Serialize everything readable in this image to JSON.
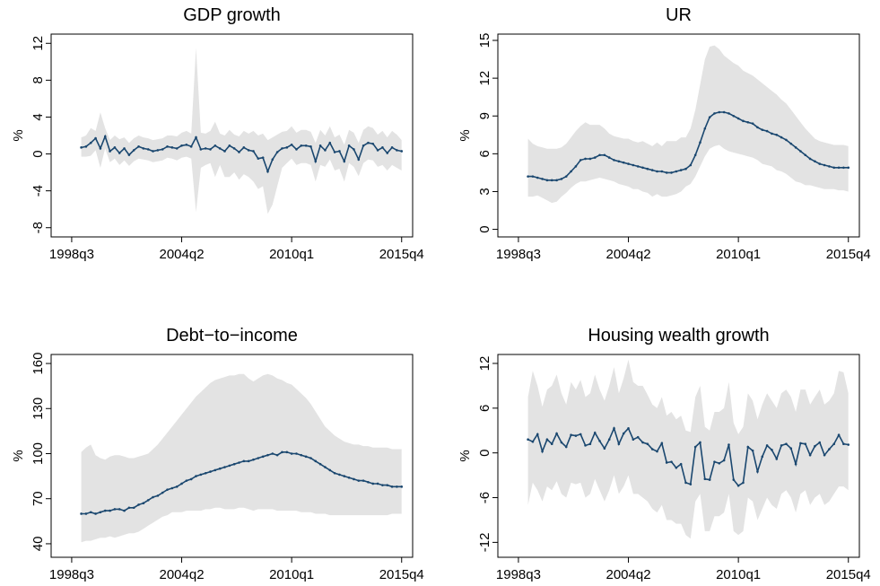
{
  "chart_data": [
    {
      "type": "line",
      "title": "GDP growth",
      "y_label": "%",
      "color": "#1a476f",
      "band_color": "#e3e3e3",
      "xlim": [
        149.7,
        225.3
      ],
      "xticks": [
        {
          "value": 154,
          "label": "1998q3"
        },
        {
          "value": 177,
          "label": "2004q2"
        },
        {
          "value": 200,
          "label": "2010q1"
        },
        {
          "value": 223,
          "label": "2015q4"
        }
      ],
      "ylim": [
        -9,
        13
      ],
      "yticks": [
        -8,
        -4,
        0,
        4,
        8,
        12
      ],
      "x": [
        156,
        157,
        158,
        159,
        160,
        161,
        162,
        163,
        164,
        165,
        166,
        167,
        168,
        169,
        170,
        171,
        172,
        173,
        174,
        175,
        176,
        177,
        178,
        179,
        180,
        181,
        182,
        183,
        184,
        185,
        186,
        187,
        188,
        189,
        190,
        191,
        192,
        193,
        194,
        195,
        196,
        197,
        198,
        199,
        200,
        201,
        202,
        203,
        204,
        205,
        206,
        207,
        208,
        209,
        210,
        211,
        212,
        213,
        214,
        215,
        216,
        217,
        218,
        219,
        220,
        221,
        222,
        223
      ],
      "values": [
        0.7,
        0.8,
        1.2,
        1.7,
        0.6,
        1.9,
        0.3,
        0.7,
        0.1,
        0.6,
        -0.1,
        0.4,
        0.8,
        0.6,
        0.5,
        0.3,
        0.4,
        0.5,
        0.8,
        0.7,
        0.6,
        0.9,
        1.0,
        0.8,
        1.8,
        0.5,
        0.6,
        0.5,
        0.9,
        0.6,
        0.3,
        0.9,
        0.6,
        0.2,
        0.7,
        0.4,
        0.3,
        -0.5,
        -0.4,
        -1.9,
        -0.6,
        0.2,
        0.6,
        0.7,
        1.0,
        0.5,
        0.9,
        0.9,
        0.8,
        -0.8,
        0.9,
        0.4,
        1.2,
        0.2,
        0.3,
        -0.8,
        0.9,
        0.5,
        -0.6,
        0.9,
        1.2,
        1.1,
        0.4,
        0.7,
        0.1,
        0.7,
        0.4,
        0.3
      ],
      "upper": [
        1.8,
        2.0,
        2.8,
        2.5,
        4.5,
        2.8,
        1.5,
        2.0,
        1.6,
        1.8,
        1.2,
        1.7,
        2.0,
        1.8,
        1.7,
        1.5,
        1.6,
        1.7,
        2.0,
        2.0,
        1.9,
        2.3,
        2.5,
        2.2,
        11.5,
        2.3,
        2.2,
        2.5,
        3.5,
        2.2,
        2.0,
        2.6,
        2.1,
        1.9,
        2.5,
        2.2,
        2.5,
        2.0,
        2.2,
        1.5,
        1.8,
        2.1,
        2.4,
        2.5,
        3.0,
        2.3,
        2.6,
        2.6,
        2.4,
        1.2,
        2.6,
        2.0,
        3.0,
        1.8,
        2.1,
        1.0,
        2.6,
        2.3,
        1.2,
        2.6,
        3.0,
        2.8,
        2.1,
        2.5,
        1.8,
        2.5,
        2.1,
        1.5
      ],
      "lower": [
        -0.3,
        -0.3,
        -0.2,
        0.4,
        -1.5,
        0.6,
        -0.9,
        -0.5,
        -1.2,
        -0.7,
        -1.3,
        -0.8,
        -0.5,
        -0.6,
        -0.7,
        -0.9,
        -0.8,
        -0.7,
        -0.4,
        -0.5,
        -0.7,
        -0.4,
        -0.3,
        -0.5,
        -6.3,
        -1.5,
        -1.2,
        -1.0,
        -2.5,
        -1.2,
        -2.5,
        -2.5,
        -2.0,
        -2.8,
        -2.2,
        -2.5,
        -3.0,
        -3.8,
        -3.5,
        -6.5,
        -5.5,
        -3.5,
        -1.5,
        -1.0,
        -0.5,
        -1.2,
        -1.0,
        -1.0,
        -1.2,
        -3.0,
        -1.2,
        -1.4,
        -0.6,
        -1.8,
        -1.6,
        -3.0,
        -1.0,
        -1.4,
        -2.4,
        -1.0,
        -0.6,
        -0.7,
        -1.4,
        -1.2,
        -1.8,
        -1.2,
        -1.5,
        -1.8
      ]
    },
    {
      "type": "line",
      "title": "UR",
      "y_label": "%",
      "color": "#1a476f",
      "band_color": "#e3e3e3",
      "xlim": [
        149.7,
        225.3
      ],
      "xticks": [
        {
          "value": 154,
          "label": "1998q3"
        },
        {
          "value": 177,
          "label": "2004q2"
        },
        {
          "value": 200,
          "label": "2010q1"
        },
        {
          "value": 223,
          "label": "2015q4"
        }
      ],
      "ylim": [
        -0.6,
        15.5
      ],
      "yticks": [
        0,
        3,
        6,
        9,
        12,
        15
      ],
      "x": [
        156,
        157,
        158,
        159,
        160,
        161,
        162,
        163,
        164,
        165,
        166,
        167,
        168,
        169,
        170,
        171,
        172,
        173,
        174,
        175,
        176,
        177,
        178,
        179,
        180,
        181,
        182,
        183,
        184,
        185,
        186,
        187,
        188,
        189,
        190,
        191,
        192,
        193,
        194,
        195,
        196,
        197,
        198,
        199,
        200,
        201,
        202,
        203,
        204,
        205,
        206,
        207,
        208,
        209,
        210,
        211,
        212,
        213,
        214,
        215,
        216,
        217,
        218,
        219,
        220,
        221,
        222,
        223
      ],
      "values": [
        4.2,
        4.2,
        4.1,
        4.0,
        3.9,
        3.9,
        3.9,
        4.0,
        4.2,
        4.6,
        5.0,
        5.5,
        5.6,
        5.6,
        5.7,
        5.9,
        5.9,
        5.7,
        5.5,
        5.4,
        5.3,
        5.2,
        5.1,
        5.0,
        4.9,
        4.8,
        4.7,
        4.6,
        4.6,
        4.5,
        4.5,
        4.6,
        4.7,
        4.8,
        5.1,
        5.9,
        6.9,
        8.0,
        8.9,
        9.2,
        9.3,
        9.3,
        9.2,
        9.0,
        8.8,
        8.6,
        8.5,
        8.4,
        8.1,
        7.9,
        7.8,
        7.6,
        7.5,
        7.3,
        7.1,
        6.8,
        6.5,
        6.2,
        5.9,
        5.6,
        5.4,
        5.2,
        5.1,
        5.0,
        4.9,
        4.9,
        4.9,
        4.9
      ],
      "upper": [
        7.2,
        6.8,
        6.6,
        6.5,
        6.4,
        6.4,
        6.4,
        6.5,
        6.8,
        7.3,
        7.8,
        8.2,
        8.5,
        8.3,
        8.3,
        8.3,
        8.0,
        7.6,
        7.4,
        7.3,
        7.2,
        7.2,
        7.0,
        6.9,
        7.0,
        6.8,
        6.6,
        6.9,
        6.6,
        7.0,
        7.0,
        7.0,
        7.3,
        7.3,
        8.0,
        9.5,
        11.5,
        13.5,
        14.5,
        14.6,
        14.3,
        13.8,
        13.5,
        13.2,
        13.0,
        12.6,
        12.4,
        12.2,
        11.9,
        11.6,
        11.3,
        11.0,
        10.7,
        10.3,
        10.0,
        9.5,
        9.0,
        8.5,
        8.0,
        7.6,
        7.2,
        7.0,
        6.9,
        6.8,
        6.7,
        6.7,
        6.7,
        6.6
      ],
      "lower": [
        2.6,
        2.6,
        2.7,
        2.5,
        2.3,
        2.1,
        2.2,
        2.6,
        2.9,
        3.3,
        3.6,
        3.8,
        3.8,
        3.9,
        4.0,
        4.1,
        4.0,
        3.9,
        3.8,
        3.6,
        3.5,
        3.4,
        3.2,
        3.2,
        3.0,
        2.9,
        2.6,
        2.8,
        2.6,
        2.6,
        2.7,
        2.8,
        3.0,
        3.4,
        3.6,
        4.2,
        5.0,
        5.8,
        6.4,
        6.6,
        6.7,
        6.4,
        6.2,
        6.1,
        6.0,
        5.9,
        5.8,
        5.7,
        5.5,
        5.2,
        5.1,
        5.0,
        4.7,
        4.6,
        4.4,
        4.1,
        3.8,
        3.7,
        3.5,
        3.5,
        3.4,
        3.3,
        3.2,
        3.2,
        3.2,
        3.1,
        3.1,
        3.0
      ]
    },
    {
      "type": "line",
      "title": "Debt−to−income",
      "y_label": "%",
      "color": "#1a476f",
      "band_color": "#e3e3e3",
      "xlim": [
        149.7,
        225.3
      ],
      "xticks": [
        {
          "value": 154,
          "label": "1998q3"
        },
        {
          "value": 177,
          "label": "2004q2"
        },
        {
          "value": 200,
          "label": "2010q1"
        },
        {
          "value": 223,
          "label": "2015q4"
        }
      ],
      "ylim": [
        31,
        166
      ],
      "yticks": [
        40,
        70,
        100,
        130,
        160
      ],
      "x": [
        156,
        157,
        158,
        159,
        160,
        161,
        162,
        163,
        164,
        165,
        166,
        167,
        168,
        169,
        170,
        171,
        172,
        173,
        174,
        175,
        176,
        177,
        178,
        179,
        180,
        181,
        182,
        183,
        184,
        185,
        186,
        187,
        188,
        189,
        190,
        191,
        192,
        193,
        194,
        195,
        196,
        197,
        198,
        199,
        200,
        201,
        202,
        203,
        204,
        205,
        206,
        207,
        208,
        209,
        210,
        211,
        212,
        213,
        214,
        215,
        216,
        217,
        218,
        219,
        220,
        221,
        222,
        223
      ],
      "values": [
        60,
        60,
        61,
        60,
        61,
        62,
        62,
        63,
        63,
        62,
        64,
        64,
        66,
        67,
        69,
        71,
        72,
        74,
        76,
        77,
        78,
        80,
        82,
        83,
        85,
        86,
        87,
        88,
        89,
        90,
        91,
        92,
        93,
        94,
        95,
        95,
        96,
        97,
        98,
        99,
        100,
        99,
        101,
        101,
        100,
        100,
        99,
        98,
        97,
        95,
        93,
        91,
        89,
        87,
        86,
        85,
        84,
        83,
        82,
        82,
        81,
        80,
        80,
        79,
        79,
        78,
        78,
        78
      ],
      "upper": [
        101,
        104,
        106,
        99,
        97,
        96,
        98,
        99,
        99,
        98,
        97,
        97,
        98,
        99,
        100,
        103,
        106,
        110,
        114,
        118,
        122,
        126,
        130,
        134,
        138,
        141,
        144,
        147,
        149,
        150,
        151,
        152,
        152,
        153,
        153,
        150,
        148,
        150,
        152,
        153,
        152,
        150,
        149,
        147,
        146,
        143,
        140,
        137,
        133,
        128,
        123,
        118,
        115,
        112,
        110,
        108,
        107,
        106,
        106,
        105,
        105,
        104,
        104,
        104,
        104,
        103,
        103,
        103
      ],
      "lower": [
        41,
        42,
        42,
        43,
        44,
        44,
        45,
        44,
        45,
        46,
        47,
        47,
        48,
        50,
        52,
        54,
        56,
        58,
        59,
        61,
        61,
        61,
        62,
        62,
        62,
        62,
        63,
        63,
        64,
        64,
        63,
        63,
        63,
        64,
        64,
        63,
        62,
        63,
        63,
        63,
        63,
        62,
        62,
        62,
        62,
        62,
        61,
        61,
        61,
        60,
        60,
        60,
        59,
        59,
        59,
        59,
        59,
        59,
        59,
        59,
        59,
        59,
        59,
        59,
        59,
        60,
        60,
        60
      ]
    },
    {
      "type": "line",
      "title": "Housing wealth growth",
      "y_label": "%",
      "color": "#1a476f",
      "band_color": "#e3e3e3",
      "xlim": [
        149.7,
        225.3
      ],
      "xticks": [
        {
          "value": 154,
          "label": "1998q3"
        },
        {
          "value": 177,
          "label": "2004q2"
        },
        {
          "value": 200,
          "label": "2010q1"
        },
        {
          "value": 223,
          "label": "2015q4"
        }
      ],
      "ylim": [
        -14,
        13.2
      ],
      "yticks": [
        -12,
        -6,
        0,
        6,
        12
      ],
      "x": [
        156,
        157,
        158,
        159,
        160,
        161,
        162,
        163,
        164,
        165,
        166,
        167,
        168,
        169,
        170,
        171,
        172,
        173,
        174,
        175,
        176,
        177,
        178,
        179,
        180,
        181,
        182,
        183,
        184,
        185,
        186,
        187,
        188,
        189,
        190,
        191,
        192,
        193,
        194,
        195,
        196,
        197,
        198,
        199,
        200,
        201,
        202,
        203,
        204,
        205,
        206,
        207,
        208,
        209,
        210,
        211,
        212,
        213,
        214,
        215,
        216,
        217,
        218,
        219,
        220,
        221,
        222,
        223
      ],
      "values": [
        1.8,
        1.5,
        2.5,
        0.2,
        1.8,
        1.2,
        2.6,
        1.4,
        0.8,
        2.4,
        2.3,
        2.5,
        1.0,
        1.2,
        2.7,
        1.6,
        0.6,
        1.8,
        3.3,
        1.2,
        2.6,
        3.3,
        1.8,
        2.1,
        1.4,
        1.2,
        0.5,
        0.2,
        1.3,
        -1.3,
        -1.2,
        -2.0,
        -1.5,
        -4.0,
        -4.2,
        0.8,
        1.4,
        -3.5,
        -3.6,
        -1.2,
        -1.4,
        -1.0,
        1.1,
        -3.6,
        -4.4,
        -4.0,
        0.8,
        0.3,
        -2.5,
        -0.5,
        1.0,
        0.4,
        -0.8,
        1.0,
        1.2,
        0.6,
        -1.5,
        1.3,
        1.2,
        -0.3,
        0.9,
        1.4,
        -0.3,
        0.5,
        1.2,
        2.4,
        1.2,
        1.1
      ],
      "upper": [
        7.5,
        11.0,
        9.0,
        6.2,
        8.5,
        9.0,
        10.5,
        8.0,
        6.5,
        9.5,
        8.5,
        9.8,
        7.5,
        8.0,
        10.5,
        8.5,
        7.0,
        9.0,
        11.5,
        8.0,
        10.0,
        12.5,
        9.5,
        9.0,
        9.0,
        7.8,
        6.5,
        6.0,
        7.5,
        5.0,
        5.5,
        4.5,
        5.0,
        3.0,
        2.8,
        7.5,
        9.0,
        3.5,
        3.0,
        5.5,
        5.5,
        6.0,
        9.5,
        4.0,
        2.5,
        3.5,
        8.0,
        7.0,
        4.5,
        6.5,
        8.0,
        7.0,
        6.0,
        8.0,
        8.5,
        7.5,
        5.5,
        8.5,
        8.5,
        6.5,
        7.5,
        8.5,
        6.5,
        7.0,
        8.0,
        11.0,
        10.8,
        8.0
      ],
      "lower": [
        -7.0,
        -4.0,
        -5.0,
        -6.5,
        -4.5,
        -5.0,
        -3.8,
        -5.5,
        -6.0,
        -4.0,
        -4.2,
        -4.0,
        -6.0,
        -5.5,
        -3.5,
        -5.0,
        -6.5,
        -5.0,
        -3.0,
        -5.5,
        -4.5,
        -3.0,
        -5.5,
        -5.5,
        -6.0,
        -6.5,
        -7.5,
        -8.0,
        -7.0,
        -9.0,
        -9.0,
        -9.5,
        -9.5,
        -11.0,
        -11.5,
        -6.5,
        -5.5,
        -10.5,
        -10.5,
        -8.5,
        -8.5,
        -8.0,
        -5.5,
        -10.5,
        -11.0,
        -10.5,
        -6.0,
        -6.5,
        -9.0,
        -7.5,
        -6.0,
        -7.0,
        -7.5,
        -5.5,
        -5.0,
        -6.0,
        -8.0,
        -5.5,
        -5.0,
        -7.0,
        -6.0,
        -5.5,
        -7.0,
        -6.5,
        -5.5,
        -4.5,
        -4.5,
        -5.0
      ]
    }
  ]
}
